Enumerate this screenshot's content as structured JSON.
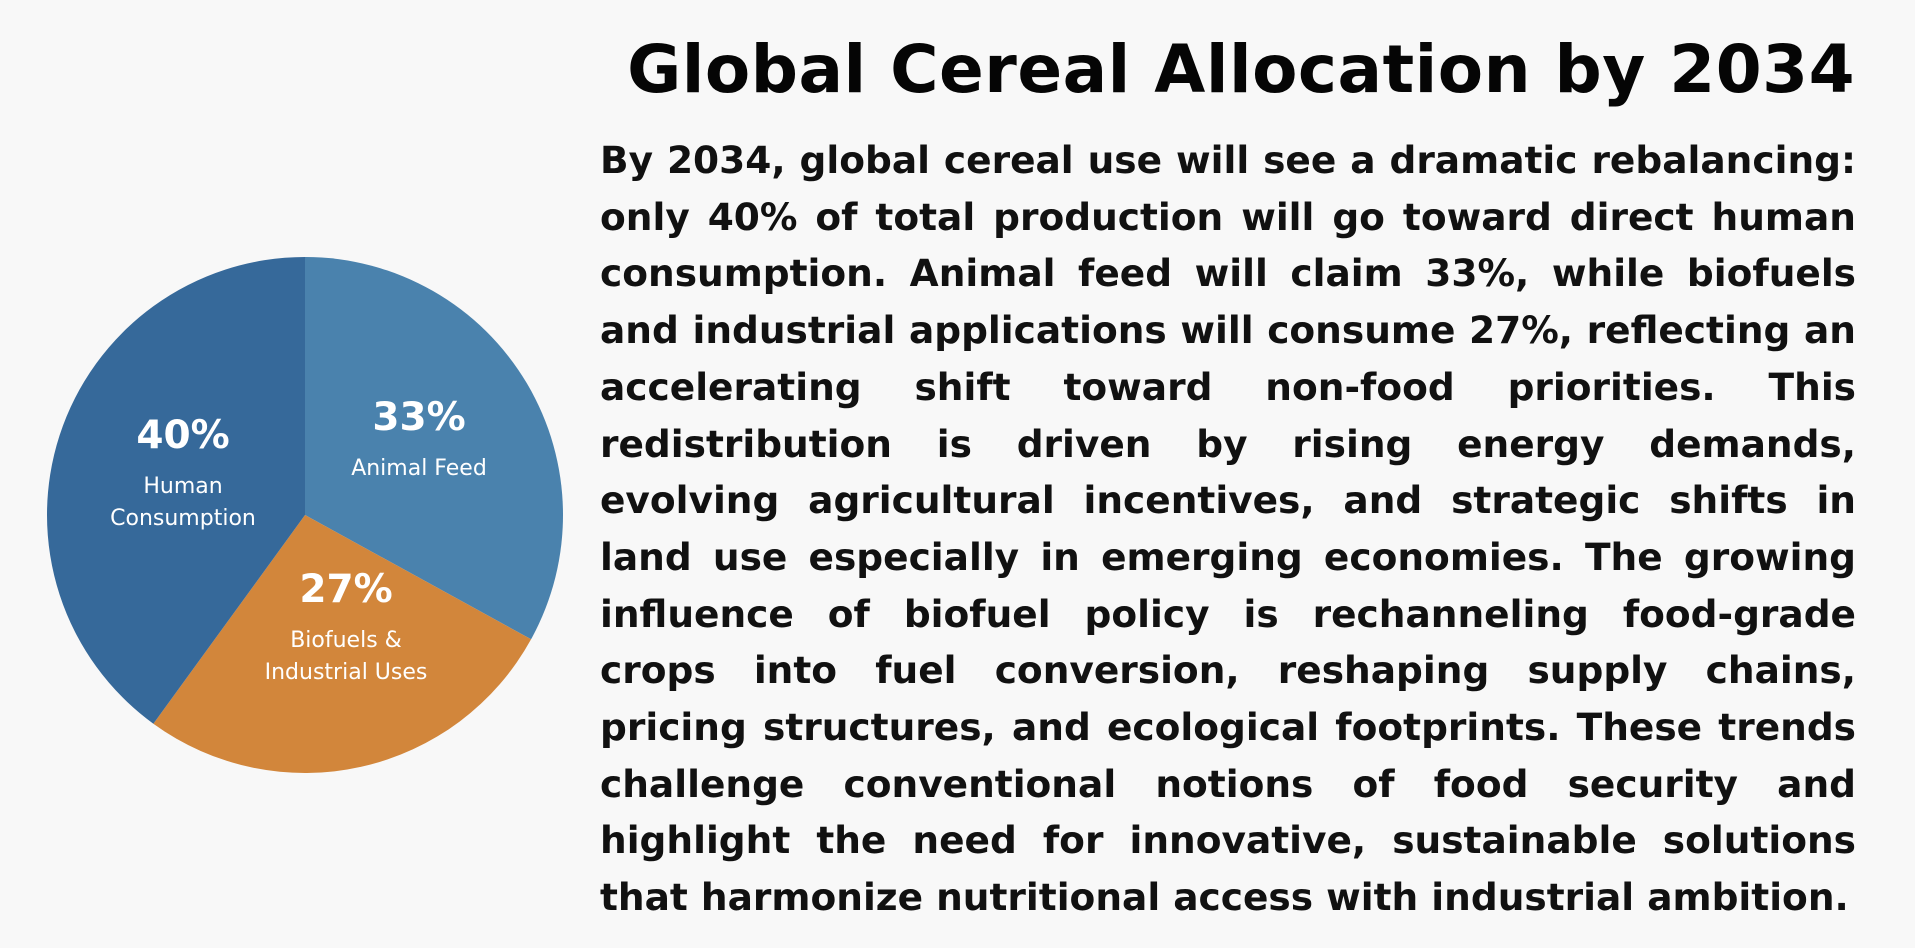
{
  "title": "Global Cereal Allocation by 2034",
  "paragraph": "By 2034, global cereal use will see a dramatic rebalancing: only 40% of total production will go toward direct human consumption. Animal feed will claim 33%, while biofuels and industrial applications will consume 27%, reflecting an accelerating shift toward non-food priorities. This redistribution is driven by rising energy demands, evolving agricultural incentives, and strategic shifts in land use especially in emerging economies. The growing influence of biofuel policy is rechanneling food-grade crops into fuel conversion, reshaping supply chains, pricing structures, and ecological footprints. These trends challenge conventional notions of food security and highlight the need for innovative, sustainable solutions that harmonize nutritional access with industrial ambition.",
  "chart_data": {
    "type": "pie",
    "title": "",
    "legend": "none",
    "slices": [
      {
        "value": 33,
        "label": "33%",
        "category_lines": [
          "Animal Feed"
        ],
        "color": "#4a82ad"
      },
      {
        "value": 27,
        "label": "27%",
        "category_lines": [
          "Biofuels &",
          "Industrial Uses"
        ],
        "color": "#d2863b"
      },
      {
        "value": 40,
        "label": "40%",
        "category_lines": [
          "Human",
          "Consumption"
        ],
        "color": "#36699a"
      }
    ],
    "start_angle_deg": 0,
    "direction": "clockwise"
  }
}
